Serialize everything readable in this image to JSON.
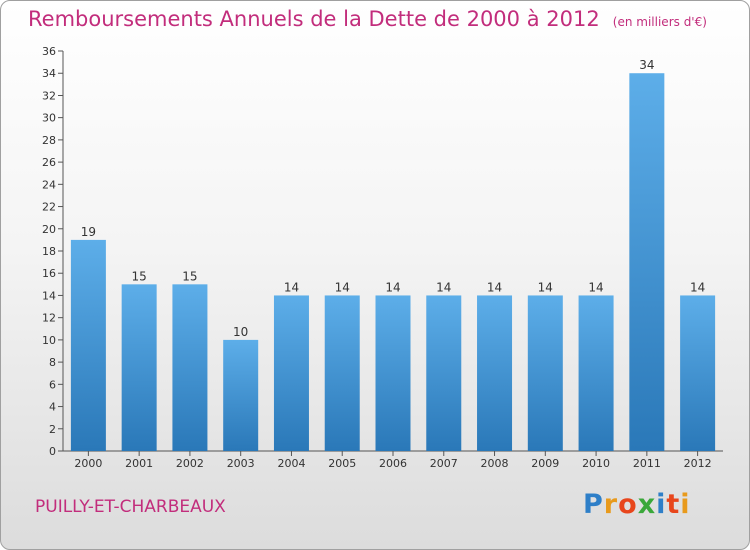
{
  "chart_data": {
    "type": "bar",
    "title": "Remboursements Annuels de la Dette de 2000 à 2012",
    "unit_note": "(en milliers d'€)",
    "categories": [
      "2000",
      "2001",
      "2002",
      "2003",
      "2004",
      "2005",
      "2006",
      "2007",
      "2008",
      "2009",
      "2010",
      "2011",
      "2012"
    ],
    "values": [
      19,
      15,
      15,
      10,
      14,
      14,
      14,
      14,
      14,
      14,
      14,
      34,
      14
    ],
    "ylim": [
      0,
      36
    ],
    "yticks": [
      0,
      2,
      4,
      6,
      8,
      10,
      12,
      14,
      16,
      18,
      20,
      22,
      24,
      26,
      28,
      30,
      32,
      34,
      36
    ],
    "grid": false,
    "bar_color_top": "#5daee9",
    "bar_color_bottom": "#2a78b8",
    "xlabel": "",
    "ylabel": ""
  },
  "footer": {
    "commune": "PUILLY-ET-CHARBEAUX",
    "logo_letters": [
      "P",
      "r",
      "o",
      "x",
      "i",
      "t",
      "i"
    ],
    "logo_colors": [
      "#2e7fc8",
      "#e89a1c",
      "#e8461c",
      "#3aa83a",
      "#2e7fc8",
      "#e8461c",
      "#e89a1c"
    ]
  }
}
